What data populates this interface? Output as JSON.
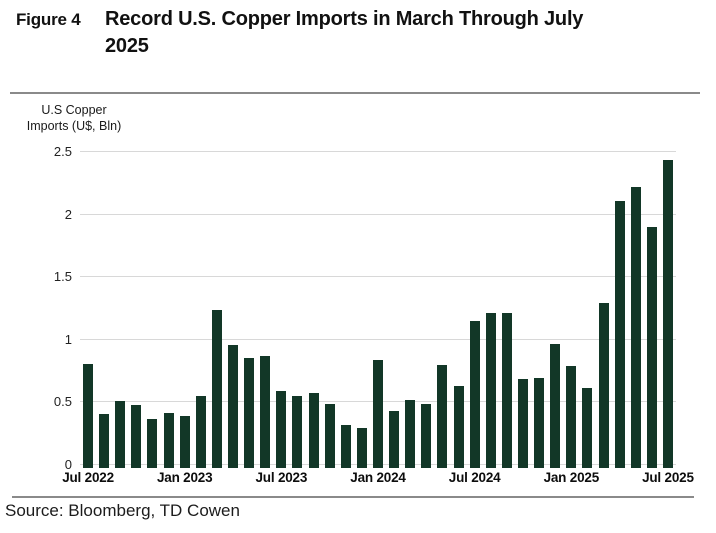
{
  "figure": {
    "label": "Figure 4",
    "title": "Record U.S. Copper Imports in March Through July 2025",
    "title_line1": "Record U.S. Copper Imports in March Through July",
    "title_line2": "2025"
  },
  "y_axis_title_line1": "U.S Copper",
  "y_axis_title_line2": "Imports (U$, Bln)",
  "source": "Source: Bloomberg, TD Cowen",
  "colors": {
    "bar": "#123727",
    "grid": "#d8d8d8",
    "rule": "#8a8a8a",
    "text": "#111111"
  },
  "chart_data": {
    "type": "bar",
    "title": "Record U.S. Copper Imports in March Through July 2025",
    "xlabel": "",
    "ylabel": "U.S Copper Imports (U$, Bln)",
    "ylim": [
      0,
      2.5
    ],
    "grid": true,
    "yticks": [
      0,
      0.5,
      1,
      1.5,
      2,
      2.5
    ],
    "ytick_labels": [
      "0",
      "0.5",
      "1",
      "1.5",
      "2",
      "2.5"
    ],
    "xticks": [
      {
        "label": "Jul 2022",
        "index": 0
      },
      {
        "label": "Jan 2023",
        "index": 6
      },
      {
        "label": "Jul 2023",
        "index": 12
      },
      {
        "label": "Jan 2024",
        "index": 18
      },
      {
        "label": "Jul 2024",
        "index": 24
      },
      {
        "label": "Jan 2025",
        "index": 30
      },
      {
        "label": "Jul 2025",
        "index": 36
      }
    ],
    "categories": [
      "Jul 2022",
      "Aug 2022",
      "Sep 2022",
      "Oct 2022",
      "Nov 2022",
      "Dec 2022",
      "Jan 2023",
      "Feb 2023",
      "Mar 2023",
      "Apr 2023",
      "May 2023",
      "Jun 2023",
      "Jul 2023",
      "Aug 2023",
      "Sep 2023",
      "Oct 2023",
      "Nov 2023",
      "Dec 2023",
      "Jan 2024",
      "Feb 2024",
      "Mar 2024",
      "Apr 2024",
      "May 2024",
      "Jun 2024",
      "Jul 2024",
      "Aug 2024",
      "Sep 2024",
      "Oct 2024",
      "Nov 2024",
      "Dec 2024",
      "Jan 2025",
      "Feb 2025",
      "Mar 2025",
      "Apr 2025",
      "May 2025",
      "Jun 2025",
      "Jul 2025"
    ],
    "values": [
      0.8,
      0.4,
      0.5,
      0.47,
      0.36,
      0.41,
      0.38,
      0.54,
      1.23,
      0.95,
      0.85,
      0.86,
      0.58,
      0.54,
      0.57,
      0.48,
      0.31,
      0.29,
      0.83,
      0.42,
      0.51,
      0.48,
      0.79,
      0.62,
      1.14,
      1.21,
      1.21,
      0.68,
      0.69,
      0.96,
      0.78,
      0.61,
      1.29,
      2.1,
      2.21,
      1.89,
      2.43
    ]
  }
}
